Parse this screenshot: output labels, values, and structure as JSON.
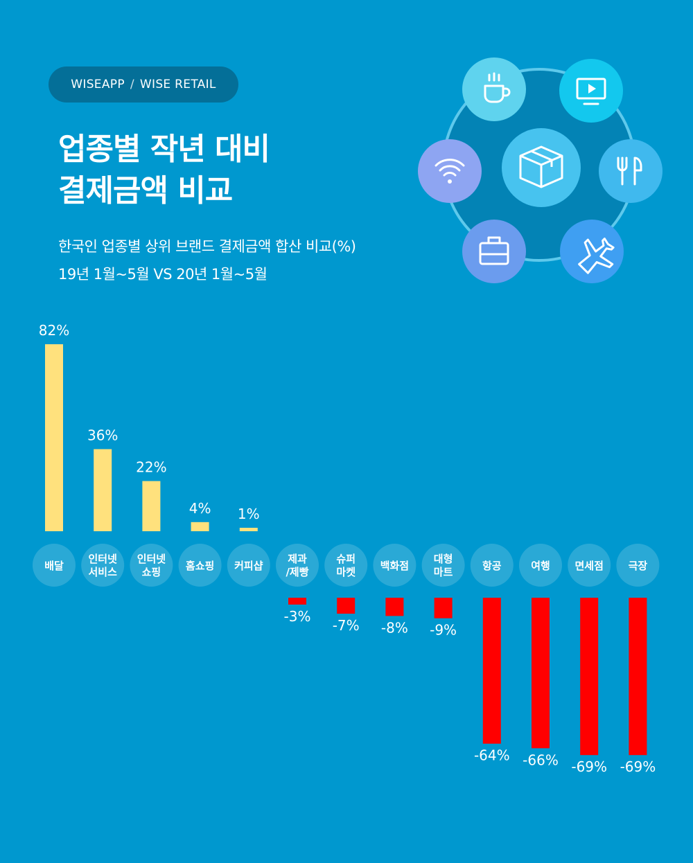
{
  "header": {
    "brand_left": "WISEAPP",
    "brand_sep": "/",
    "brand_right": "WISE RETAIL",
    "title_line1": "업종별 작년 대비",
    "title_line2": "결제금액 비교",
    "subtitle_line1": "한국인 업종별 상위 브랜드 결제금액 합산 비교(%)",
    "subtitle_line2": "19년 1월~5월 VS 20년 1월~5월"
  },
  "icons": [
    {
      "name": "coffee-cup-icon",
      "color": "#5fd3ee"
    },
    {
      "name": "video-play-icon",
      "color": "#13c8ee"
    },
    {
      "name": "wifi-icon",
      "color": "#8ea5f2"
    },
    {
      "name": "package-box-icon",
      "color": "#47c3ef"
    },
    {
      "name": "fork-knife-icon",
      "color": "#40b9ee"
    },
    {
      "name": "suitcase-icon",
      "color": "#6b9cee"
    },
    {
      "name": "airplane-icon",
      "color": "#3f9ff2"
    }
  ],
  "colors": {
    "background": "#0098cf",
    "positive": "#ffe17d",
    "negative": "#ff0000",
    "category_circle": "#2aa9d6"
  },
  "chart_data": {
    "type": "bar",
    "title": "업종별 작년 대비 결제금액 비교",
    "categories": [
      [
        "배달"
      ],
      [
        "인터넷",
        "서비스"
      ],
      [
        "인터넷",
        "쇼핑"
      ],
      [
        "홈쇼핑"
      ],
      [
        "커피샵"
      ],
      [
        "제과",
        "/제빵"
      ],
      [
        "슈퍼",
        "마켓"
      ],
      [
        "백화점"
      ],
      [
        "대형",
        "마트"
      ],
      [
        "항공"
      ],
      [
        "여행"
      ],
      [
        "면세점"
      ],
      [
        "극장"
      ]
    ],
    "values": [
      82,
      36,
      22,
      4,
      1,
      -3,
      -7,
      -8,
      -9,
      -64,
      -66,
      -69,
      -69
    ],
    "labels": [
      "82%",
      "36%",
      "22%",
      "4%",
      "1%",
      "-3%",
      "-7%",
      "-8%",
      "-9%",
      "-64%",
      "-66%",
      "-69%",
      "-69%"
    ],
    "unit": "%"
  }
}
